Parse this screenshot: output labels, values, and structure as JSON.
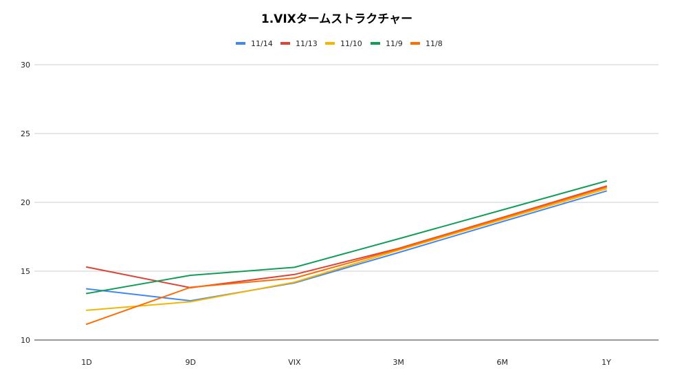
{
  "chart_data": {
    "type": "line",
    "title": "1.VIXタームストラクチャー",
    "xlabel": "",
    "ylabel": "",
    "categories": [
      "1D",
      "9D",
      "VIX",
      "3M",
      "6M",
      "1Y"
    ],
    "ylim": [
      10,
      30
    ],
    "yticks": [
      10,
      15,
      20,
      25,
      30
    ],
    "grid": true,
    "legend_position": "top",
    "series": [
      {
        "name": "11/14",
        "color": "#4285f4",
        "values": [
          13.72,
          12.85,
          14.15,
          16.35,
          18.6,
          20.82
        ]
      },
      {
        "name": "11/13",
        "color": "#db4437",
        "values": [
          15.3,
          13.8,
          14.76,
          16.65,
          18.9,
          21.18
        ]
      },
      {
        "name": "11/10",
        "color": "#f4b400",
        "values": [
          12.16,
          12.78,
          14.2,
          16.52,
          18.75,
          20.98
        ]
      },
      {
        "name": "11/9",
        "color": "#0f9d58",
        "values": [
          13.38,
          14.7,
          15.28,
          17.35,
          19.45,
          21.55
        ]
      },
      {
        "name": "11/8",
        "color": "#ff6d01",
        "values": [
          11.15,
          13.83,
          14.5,
          16.6,
          18.85,
          21.1
        ]
      }
    ]
  }
}
